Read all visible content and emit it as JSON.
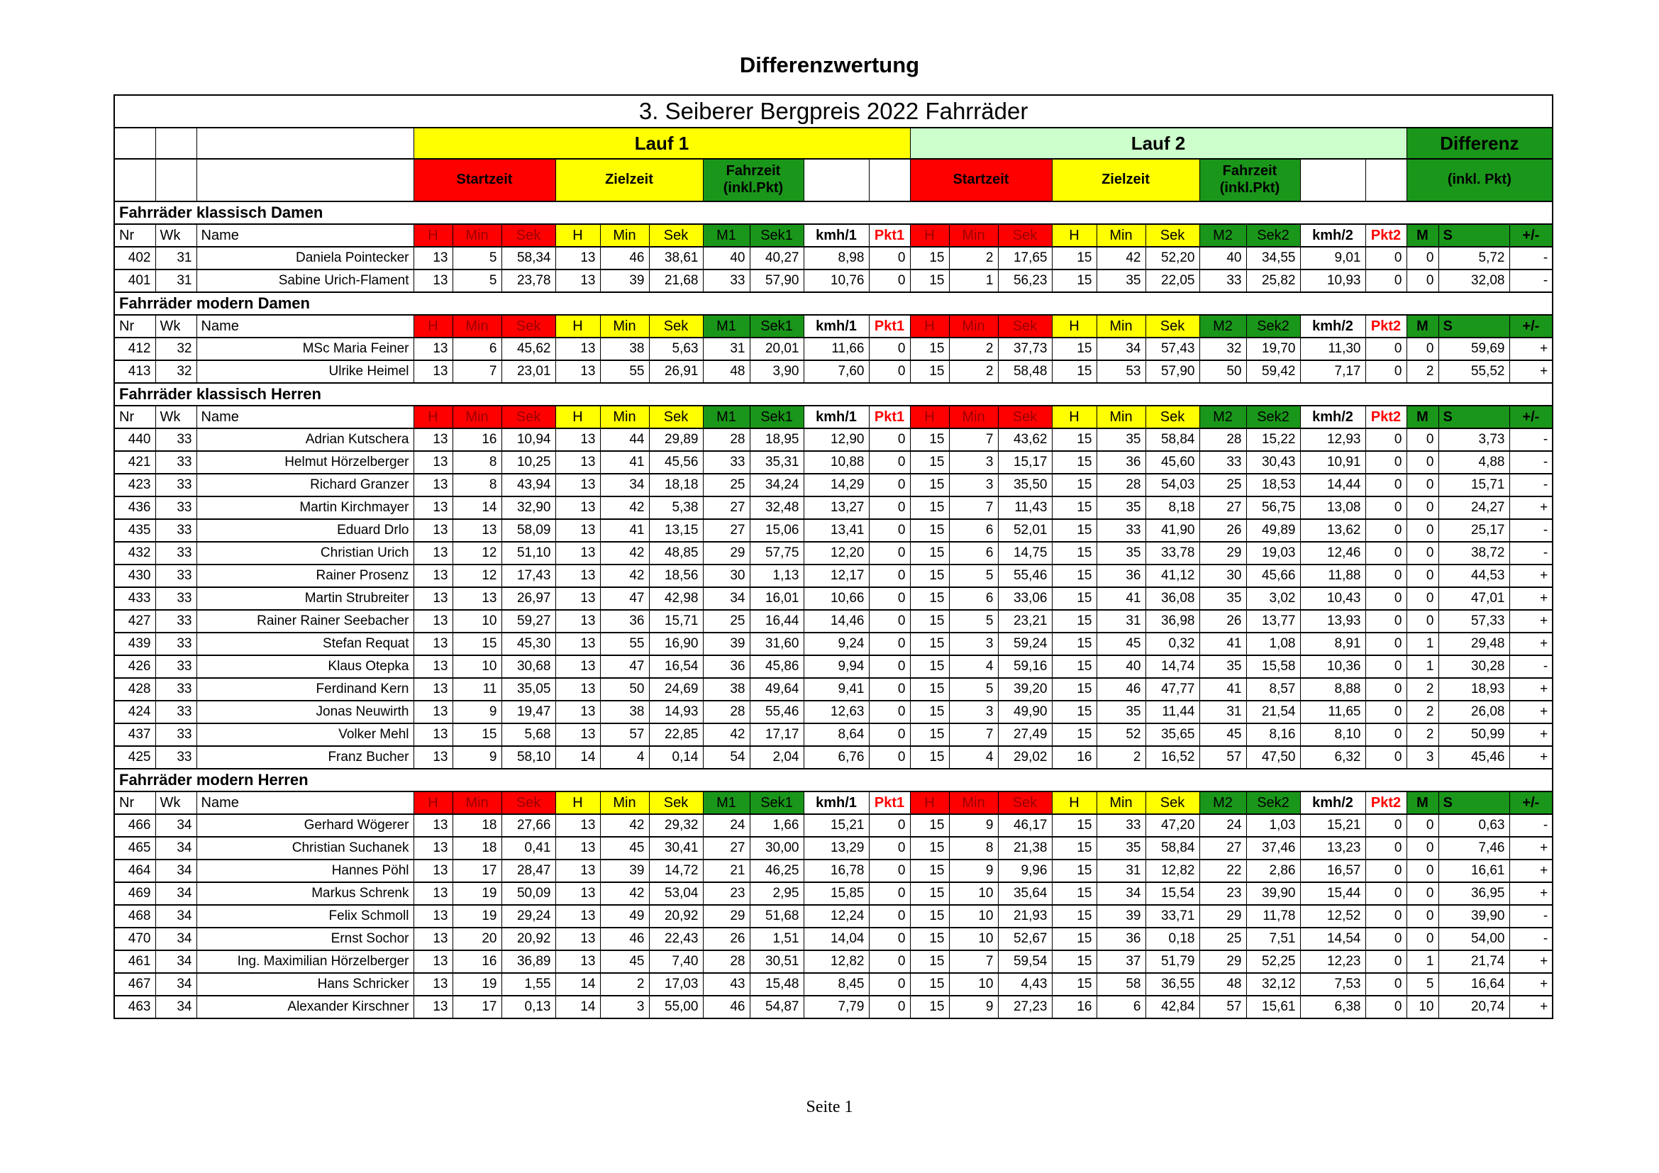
{
  "page": {
    "title": "Differenzwertung",
    "footer": "Seite 1"
  },
  "colors": {
    "red": "#ff0000",
    "yellow": "#ffff00",
    "green": "#1a961a",
    "light_green": "#ccffcc",
    "dark_red_header_text": "#990000",
    "pkt_header_text": "#ff0000"
  },
  "table": {
    "title": "3. Seiberer Bergpreis 2022 Fahrräder",
    "groups": {
      "lauf1": "Lauf 1",
      "lauf2": "Lauf 2",
      "differenz": "Differenz"
    },
    "subgroups": {
      "startzeit": "Startzeit",
      "zielzeit": "Zielzeit",
      "fahrzeit_line1": "Fahrzeit",
      "fahrzeit_line2": "(inkl.Pkt)",
      "differenz_sub": "(inkl. Pkt)"
    },
    "columns": [
      "Nr",
      "Wk",
      "Name",
      "H",
      "Min",
      "Sek",
      "H",
      "Min",
      "Sek",
      "M1",
      "Sek1",
      "kmh/1",
      "Pkt1",
      "H",
      "Min",
      "Sek",
      "H",
      "Min",
      "Sek",
      "M2",
      "Sek2",
      "kmh/2",
      "Pkt2",
      "M",
      "S",
      "+/-"
    ],
    "sections": [
      {
        "title": "Fahrräder klassisch Damen",
        "rows": [
          [
            "402",
            "31",
            "Daniela Pointecker",
            "13",
            "5",
            "58,34",
            "13",
            "46",
            "38,61",
            "40",
            "40,27",
            "8,98",
            "0",
            "15",
            "2",
            "17,65",
            "15",
            "42",
            "52,20",
            "40",
            "34,55",
            "9,01",
            "0",
            "0",
            "5,72",
            "-"
          ],
          [
            "401",
            "31",
            "Sabine Urich-Flament",
            "13",
            "5",
            "23,78",
            "13",
            "39",
            "21,68",
            "33",
            "57,90",
            "10,76",
            "0",
            "15",
            "1",
            "56,23",
            "15",
            "35",
            "22,05",
            "33",
            "25,82",
            "10,93",
            "0",
            "0",
            "32,08",
            "-"
          ]
        ]
      },
      {
        "title": "Fahrräder modern Damen",
        "rows": [
          [
            "412",
            "32",
            "MSc Maria Feiner",
            "13",
            "6",
            "45,62",
            "13",
            "38",
            "5,63",
            "31",
            "20,01",
            "11,66",
            "0",
            "15",
            "2",
            "37,73",
            "15",
            "34",
            "57,43",
            "32",
            "19,70",
            "11,30",
            "0",
            "0",
            "59,69",
            "+"
          ],
          [
            "413",
            "32",
            "Ulrike Heimel",
            "13",
            "7",
            "23,01",
            "13",
            "55",
            "26,91",
            "48",
            "3,90",
            "7,60",
            "0",
            "15",
            "2",
            "58,48",
            "15",
            "53",
            "57,90",
            "50",
            "59,42",
            "7,17",
            "0",
            "2",
            "55,52",
            "+"
          ]
        ]
      },
      {
        "title": "Fahrräder klassisch Herren",
        "rows": [
          [
            "440",
            "33",
            "Adrian Kutschera",
            "13",
            "16",
            "10,94",
            "13",
            "44",
            "29,89",
            "28",
            "18,95",
            "12,90",
            "0",
            "15",
            "7",
            "43,62",
            "15",
            "35",
            "58,84",
            "28",
            "15,22",
            "12,93",
            "0",
            "0",
            "3,73",
            "-"
          ],
          [
            "421",
            "33",
            "Helmut Hörzelberger",
            "13",
            "8",
            "10,25",
            "13",
            "41",
            "45,56",
            "33",
            "35,31",
            "10,88",
            "0",
            "15",
            "3",
            "15,17",
            "15",
            "36",
            "45,60",
            "33",
            "30,43",
            "10,91",
            "0",
            "0",
            "4,88",
            "-"
          ],
          [
            "423",
            "33",
            "Richard Granzer",
            "13",
            "8",
            "43,94",
            "13",
            "34",
            "18,18",
            "25",
            "34,24",
            "14,29",
            "0",
            "15",
            "3",
            "35,50",
            "15",
            "28",
            "54,03",
            "25",
            "18,53",
            "14,44",
            "0",
            "0",
            "15,71",
            "-"
          ],
          [
            "436",
            "33",
            "Martin Kirchmayer",
            "13",
            "14",
            "32,90",
            "13",
            "42",
            "5,38",
            "27",
            "32,48",
            "13,27",
            "0",
            "15",
            "7",
            "11,43",
            "15",
            "35",
            "8,18",
            "27",
            "56,75",
            "13,08",
            "0",
            "0",
            "24,27",
            "+"
          ],
          [
            "435",
            "33",
            "Eduard Drlo",
            "13",
            "13",
            "58,09",
            "13",
            "41",
            "13,15",
            "27",
            "15,06",
            "13,41",
            "0",
            "15",
            "6",
            "52,01",
            "15",
            "33",
            "41,90",
            "26",
            "49,89",
            "13,62",
            "0",
            "0",
            "25,17",
            "-"
          ],
          [
            "432",
            "33",
            "Christian Urich",
            "13",
            "12",
            "51,10",
            "13",
            "42",
            "48,85",
            "29",
            "57,75",
            "12,20",
            "0",
            "15",
            "6",
            "14,75",
            "15",
            "35",
            "33,78",
            "29",
            "19,03",
            "12,46",
            "0",
            "0",
            "38,72",
            "-"
          ],
          [
            "430",
            "33",
            "Rainer Prosenz",
            "13",
            "12",
            "17,43",
            "13",
            "42",
            "18,56",
            "30",
            "1,13",
            "12,17",
            "0",
            "15",
            "5",
            "55,46",
            "15",
            "36",
            "41,12",
            "30",
            "45,66",
            "11,88",
            "0",
            "0",
            "44,53",
            "+"
          ],
          [
            "433",
            "33",
            "Martin Strubreiter",
            "13",
            "13",
            "26,97",
            "13",
            "47",
            "42,98",
            "34",
            "16,01",
            "10,66",
            "0",
            "15",
            "6",
            "33,06",
            "15",
            "41",
            "36,08",
            "35",
            "3,02",
            "10,43",
            "0",
            "0",
            "47,01",
            "+"
          ],
          [
            "427",
            "33",
            "Rainer Rainer Seebacher",
            "13",
            "10",
            "59,27",
            "13",
            "36",
            "15,71",
            "25",
            "16,44",
            "14,46",
            "0",
            "15",
            "5",
            "23,21",
            "15",
            "31",
            "36,98",
            "26",
            "13,77",
            "13,93",
            "0",
            "0",
            "57,33",
            "+"
          ],
          [
            "439",
            "33",
            "Stefan Requat",
            "13",
            "15",
            "45,30",
            "13",
            "55",
            "16,90",
            "39",
            "31,60",
            "9,24",
            "0",
            "15",
            "3",
            "59,24",
            "15",
            "45",
            "0,32",
            "41",
            "1,08",
            "8,91",
            "0",
            "1",
            "29,48",
            "+"
          ],
          [
            "426",
            "33",
            "Klaus Otepka",
            "13",
            "10",
            "30,68",
            "13",
            "47",
            "16,54",
            "36",
            "45,86",
            "9,94",
            "0",
            "15",
            "4",
            "59,16",
            "15",
            "40",
            "14,74",
            "35",
            "15,58",
            "10,36",
            "0",
            "1",
            "30,28",
            "-"
          ],
          [
            "428",
            "33",
            "Ferdinand Kern",
            "13",
            "11",
            "35,05",
            "13",
            "50",
            "24,69",
            "38",
            "49,64",
            "9,41",
            "0",
            "15",
            "5",
            "39,20",
            "15",
            "46",
            "47,77",
            "41",
            "8,57",
            "8,88",
            "0",
            "2",
            "18,93",
            "+"
          ],
          [
            "424",
            "33",
            "Jonas Neuwirth",
            "13",
            "9",
            "19,47",
            "13",
            "38",
            "14,93",
            "28",
            "55,46",
            "12,63",
            "0",
            "15",
            "3",
            "49,90",
            "15",
            "35",
            "11,44",
            "31",
            "21,54",
            "11,65",
            "0",
            "2",
            "26,08",
            "+"
          ],
          [
            "437",
            "33",
            "Volker Mehl",
            "13",
            "15",
            "5,68",
            "13",
            "57",
            "22,85",
            "42",
            "17,17",
            "8,64",
            "0",
            "15",
            "7",
            "27,49",
            "15",
            "52",
            "35,65",
            "45",
            "8,16",
            "8,10",
            "0",
            "2",
            "50,99",
            "+"
          ],
          [
            "425",
            "33",
            "Franz Bucher",
            "13",
            "9",
            "58,10",
            "14",
            "4",
            "0,14",
            "54",
            "2,04",
            "6,76",
            "0",
            "15",
            "4",
            "29,02",
            "16",
            "2",
            "16,52",
            "57",
            "47,50",
            "6,32",
            "0",
            "3",
            "45,46",
            "+"
          ]
        ]
      },
      {
        "title": "Fahrräder modern Herren",
        "rows": [
          [
            "466",
            "34",
            "Gerhard Wögerer",
            "13",
            "18",
            "27,66",
            "13",
            "42",
            "29,32",
            "24",
            "1,66",
            "15,21",
            "0",
            "15",
            "9",
            "46,17",
            "15",
            "33",
            "47,20",
            "24",
            "1,03",
            "15,21",
            "0",
            "0",
            "0,63",
            "-"
          ],
          [
            "465",
            "34",
            "Christian Suchanek",
            "13",
            "18",
            "0,41",
            "13",
            "45",
            "30,41",
            "27",
            "30,00",
            "13,29",
            "0",
            "15",
            "8",
            "21,38",
            "15",
            "35",
            "58,84",
            "27",
            "37,46",
            "13,23",
            "0",
            "0",
            "7,46",
            "+"
          ],
          [
            "464",
            "34",
            "Hannes Pöhl",
            "13",
            "17",
            "28,47",
            "13",
            "39",
            "14,72",
            "21",
            "46,25",
            "16,78",
            "0",
            "15",
            "9",
            "9,96",
            "15",
            "31",
            "12,82",
            "22",
            "2,86",
            "16,57",
            "0",
            "0",
            "16,61",
            "+"
          ],
          [
            "469",
            "34",
            "Markus Schrenk",
            "13",
            "19",
            "50,09",
            "13",
            "42",
            "53,04",
            "23",
            "2,95",
            "15,85",
            "0",
            "15",
            "10",
            "35,64",
            "15",
            "34",
            "15,54",
            "23",
            "39,90",
            "15,44",
            "0",
            "0",
            "36,95",
            "+"
          ],
          [
            "468",
            "34",
            "Felix Schmoll",
            "13",
            "19",
            "29,24",
            "13",
            "49",
            "20,92",
            "29",
            "51,68",
            "12,24",
            "0",
            "15",
            "10",
            "21,93",
            "15",
            "39",
            "33,71",
            "29",
            "11,78",
            "12,52",
            "0",
            "0",
            "39,90",
            "-"
          ],
          [
            "470",
            "34",
            "Ernst Sochor",
            "13",
            "20",
            "20,92",
            "13",
            "46",
            "22,43",
            "26",
            "1,51",
            "14,04",
            "0",
            "15",
            "10",
            "52,67",
            "15",
            "36",
            "0,18",
            "25",
            "7,51",
            "14,54",
            "0",
            "0",
            "54,00",
            "-"
          ],
          [
            "461",
            "34",
            "Ing. Maximilian Hörzelberger",
            "13",
            "16",
            "36,89",
            "13",
            "45",
            "7,40",
            "28",
            "30,51",
            "12,82",
            "0",
            "15",
            "7",
            "59,54",
            "15",
            "37",
            "51,79",
            "29",
            "52,25",
            "12,23",
            "0",
            "1",
            "21,74",
            "+"
          ],
          [
            "467",
            "34",
            "Hans Schricker",
            "13",
            "19",
            "1,55",
            "14",
            "2",
            "17,03",
            "43",
            "15,48",
            "8,45",
            "0",
            "15",
            "10",
            "4,43",
            "15",
            "58",
            "36,55",
            "48",
            "32,12",
            "7,53",
            "0",
            "5",
            "16,64",
            "+"
          ],
          [
            "463",
            "34",
            "Alexander Kirschner",
            "13",
            "17",
            "0,13",
            "14",
            "3",
            "55,00",
            "46",
            "54,87",
            "7,79",
            "0",
            "15",
            "9",
            "27,23",
            "16",
            "6",
            "42,84",
            "57",
            "15,61",
            "6,38",
            "0",
            "10",
            "20,74",
            "+"
          ]
        ]
      }
    ]
  }
}
